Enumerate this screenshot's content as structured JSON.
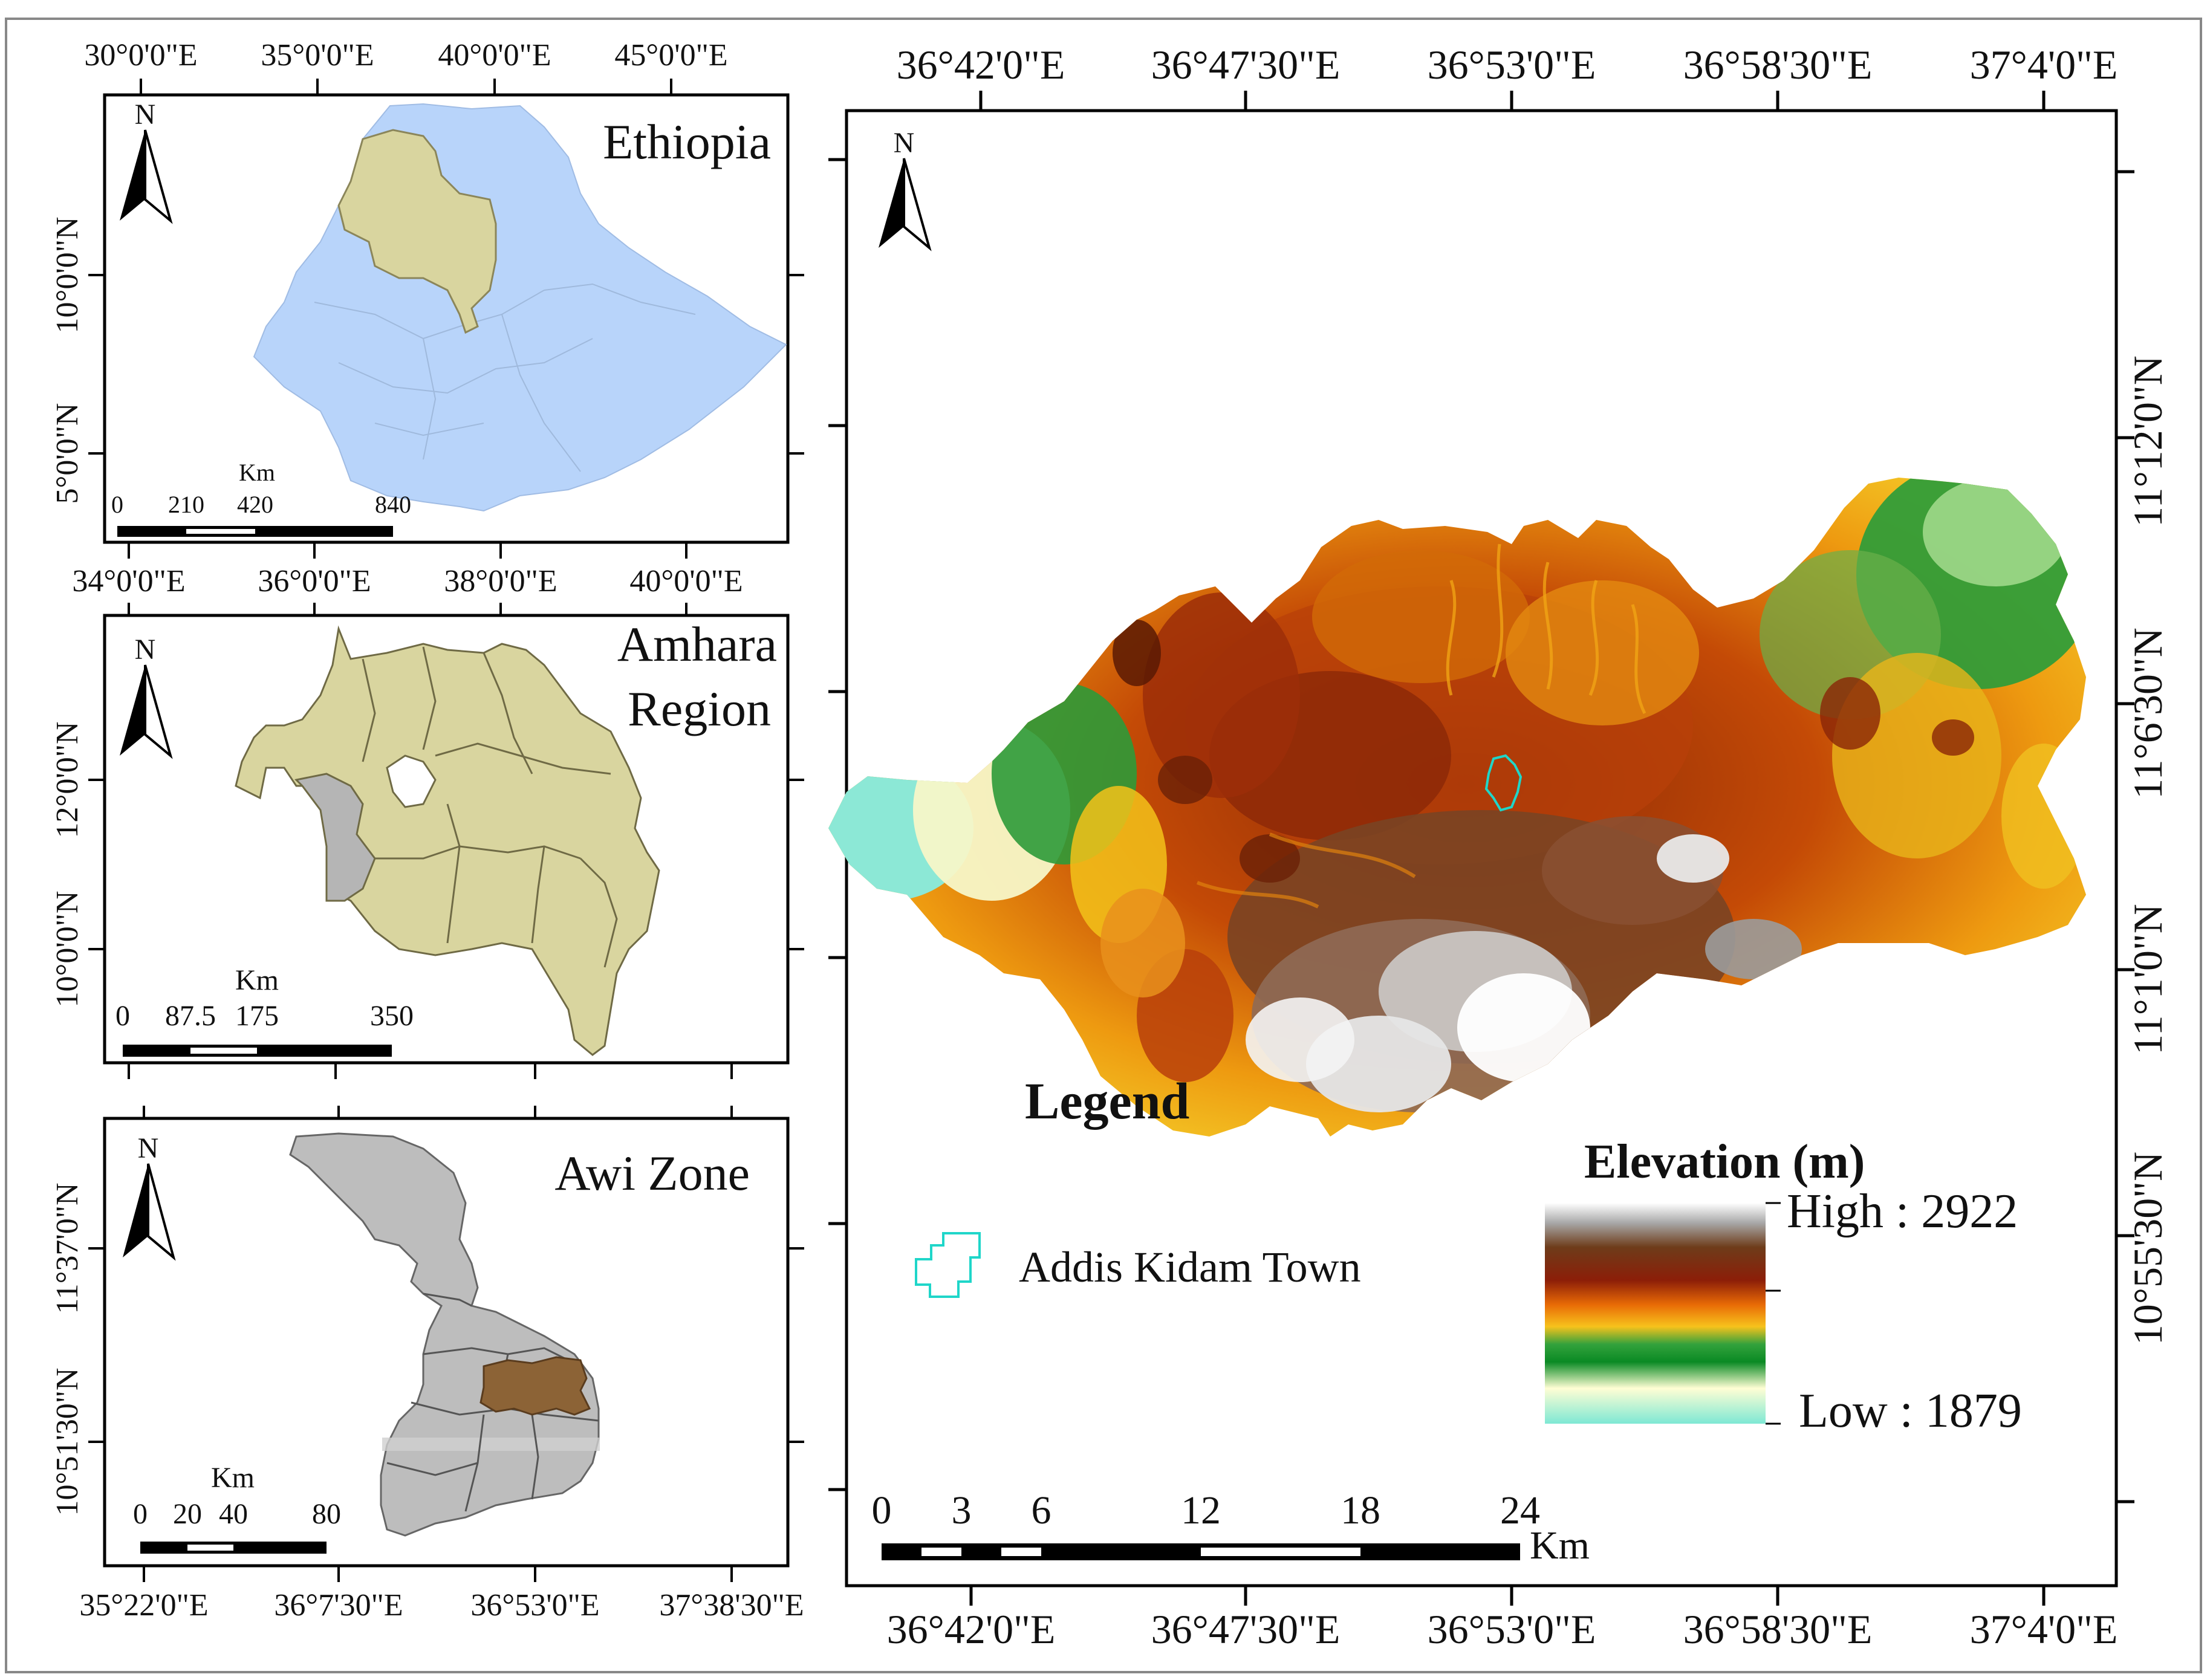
{
  "colors": {
    "ethiopia_fill": "#b8d4fa",
    "amhara_fill": "#d9d59f",
    "awi_fill": "#bdbdbd",
    "study_area_highlight": "#8c6336",
    "town_outline": "#1fd6c9"
  },
  "north_arrow": {
    "label": "N"
  },
  "ethiopia": {
    "title": "Ethiopia",
    "top_ticks": [
      "30°0'0\"E",
      "35°0'0\"E",
      "40°0'0\"E",
      "45°0'0\"E"
    ],
    "bottom_ticks": [
      "34°0'0\"E",
      "36°0'0\"E",
      "38°0'0\"E",
      "40°0'0\"E"
    ],
    "left_ticks": [
      "10°0'0\"N",
      "5°0'0\"N"
    ],
    "scale": {
      "unit": "Km",
      "labels": [
        "0",
        "210",
        "420",
        "840"
      ]
    }
  },
  "amhara": {
    "title_line1": "Amhara",
    "title_line2": "Region",
    "left_ticks": [
      "12°0'0\"N",
      "10°0'0\"N"
    ],
    "scale": {
      "unit": "Km",
      "labels": [
        "0",
        "87.5",
        "175",
        "350"
      ]
    }
  },
  "awi": {
    "title": "Awi Zone",
    "left_ticks": [
      "11°37'0\"N",
      "10°51'30\"N"
    ],
    "bottom_ticks": [
      "35°22'0\"E",
      "36°7'30\"E",
      "36°53'0\"E",
      "37°38'30\"E"
    ],
    "scale": {
      "unit": "Km",
      "labels": [
        "0",
        "20",
        "40",
        "80"
      ]
    }
  },
  "main": {
    "top_ticks": [
      "36°42'0\"E",
      "36°47'30\"E",
      "36°53'0\"E",
      "36°58'30\"E",
      "37°4'0\"E"
    ],
    "bottom_ticks": [
      "36°42'0\"E",
      "36°47'30\"E",
      "36°53'0\"E",
      "36°58'30\"E",
      "37°4'0\"E"
    ],
    "right_ticks": [
      "11°12'0\"N",
      "11°6'30\"N",
      "11°1'0\"N",
      "10°55'30\"N"
    ],
    "legend_title": "Legend",
    "town_label": "Addis Kidam Town",
    "elevation_title": "Elevation (m)",
    "high_label": "High : 2922",
    "low_label": "Low : 1879",
    "elevation_high": 2922,
    "elevation_low": 1879,
    "scale": {
      "unit": "Km",
      "labels": [
        "0",
        "3",
        "6",
        "12",
        "18",
        "24"
      ]
    }
  }
}
